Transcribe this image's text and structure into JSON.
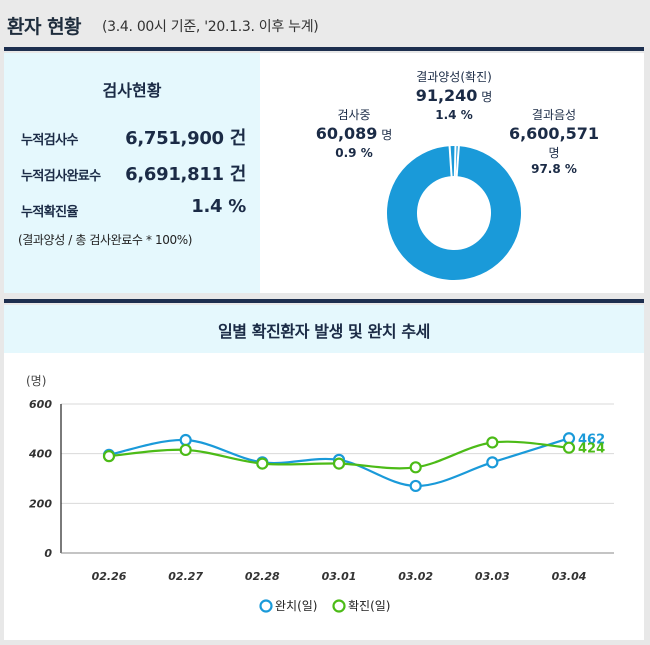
{
  "header": {
    "title": "환자 현황",
    "subtitle": "(3.4. 00시 기준, '20.1.3. 이후 누계)"
  },
  "test_status": {
    "title": "검사현황",
    "rows": [
      {
        "label": "누적검사수",
        "value": "6,751,900 건"
      },
      {
        "label": "누적검사완료수",
        "value": "6,691,811 건"
      },
      {
        "label": "누적확진율",
        "value": "1.4 %"
      }
    ],
    "note": "(결과양성 / 총 검사완료수 * 100%)"
  },
  "donut": {
    "positive": {
      "label": "결과양성(확진)",
      "count": "91,240",
      "unit": "명",
      "pct_text": "1.4 %",
      "pct": 1.4
    },
    "testing": {
      "label": "검사중",
      "count": "60,089",
      "unit": "명",
      "pct_text": "0.9 %",
      "pct": 0.9
    },
    "negative": {
      "label": "결과음성",
      "count": "6,600,571",
      "unit": "명",
      "pct_text": "97.8 %",
      "pct": 97.8
    },
    "colors": {
      "negative": "#1a9ad9",
      "positive": "#1a9ad9",
      "testing": "#1a9ad9",
      "gap": "#ffffff"
    }
  },
  "chart": {
    "title": "일별 확진환자 발생 및 완치 추세",
    "unit_label": "(명)",
    "colors": {
      "recovered": "#1a9ad9",
      "confirmed": "#4cbb17"
    }
  },
  "chart_data": {
    "type": "line",
    "categories": [
      "02.26",
      "02.27",
      "02.28",
      "03.01",
      "03.02",
      "03.03",
      "03.04"
    ],
    "ylim": [
      0,
      600
    ],
    "yticks": [
      0,
      200,
      400,
      600
    ],
    "grid": true,
    "legend": "bottom",
    "series": [
      {
        "name": "완치(일)",
        "values": [
          395,
          455,
          365,
          375,
          270,
          365,
          462
        ]
      },
      {
        "name": "확진(일)",
        "values": [
          390,
          415,
          360,
          360,
          345,
          445,
          424
        ]
      }
    ],
    "end_labels": [
      "462",
      "424"
    ]
  }
}
